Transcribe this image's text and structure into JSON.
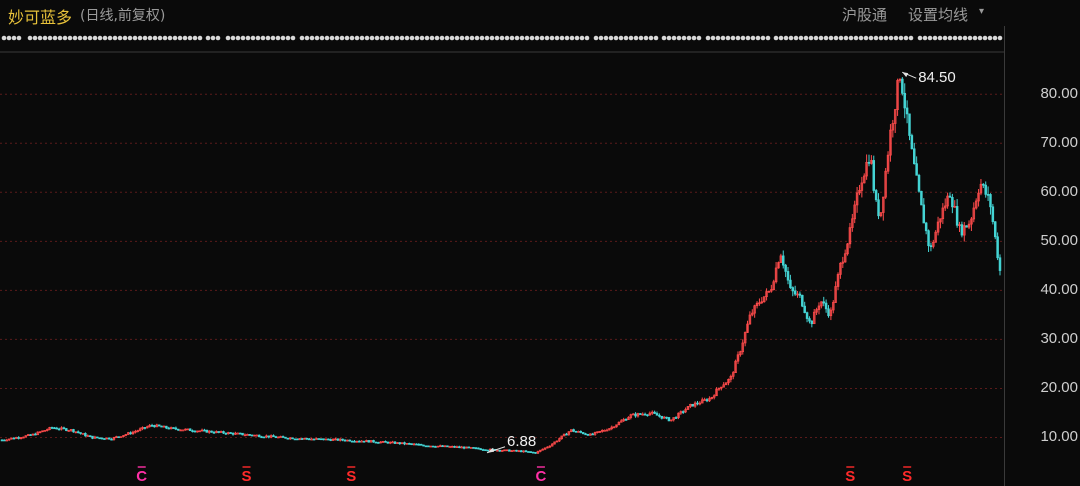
{
  "header": {
    "stock_name": "妙可蓝多",
    "period_label": "(日线,前复权)",
    "hk_connect_button": "沪股通",
    "ma_settings_button": "设置均线",
    "ma_settings_caret": "▾"
  },
  "colors": {
    "background": "#0a0a0a",
    "up": "#ff4b4b",
    "down": "#44d4d4",
    "grid": "#5a1a1a",
    "title": "#e8c23a",
    "marker_magenta": "#ff2fa6",
    "marker_red": "#ff2a2a"
  },
  "event_markers": [
    {
      "symbol": "C",
      "color": "magenta",
      "date_index": 0.14
    },
    {
      "symbol": "S",
      "color": "red",
      "date_index": 0.245
    },
    {
      "symbol": "S",
      "color": "red",
      "date_index": 0.35
    },
    {
      "symbol": "C",
      "color": "magenta",
      "date_index": 0.54
    },
    {
      "symbol": "S",
      "color": "red",
      "date_index": 0.85
    },
    {
      "symbol": "S",
      "color": "red",
      "date_index": 0.907
    }
  ],
  "chart_data": {
    "type": "candlestick",
    "title": "",
    "xlabel": "",
    "ylabel": "",
    "ylim": [
      5.0,
      88.0
    ],
    "yticks": [
      "10.00",
      "20.00",
      "30.00",
      "40.00",
      "50.00",
      "60.00",
      "70.00",
      "80.00"
    ],
    "grid": true,
    "annotations": [
      {
        "label": "84.50",
        "type": "max",
        "value": 84.5
      },
      {
        "label": "6.88",
        "type": "min",
        "value": 6.88
      }
    ],
    "series": [
      {
        "x": [
          0,
          0.03,
          0.05,
          0.07,
          0.09,
          0.11,
          0.13,
          0.15,
          0.17,
          0.19,
          0.22,
          0.25,
          0.28,
          0.31,
          0.34,
          0.37,
          0.4,
          0.43,
          0.46,
          0.49,
          0.52,
          0.535,
          0.55,
          0.57,
          0.59,
          0.61,
          0.63,
          0.65,
          0.67,
          0.69,
          0.71,
          0.72,
          0.73,
          0.74,
          0.75,
          0.76,
          0.77,
          0.78,
          0.79,
          0.8,
          0.81,
          0.82,
          0.83,
          0.84,
          0.85,
          0.86,
          0.87,
          0.875,
          0.88,
          0.89,
          0.9,
          0.91,
          0.92,
          0.93,
          0.94,
          0.95,
          0.96,
          0.97,
          0.98,
          0.99,
          1.0
        ],
        "y": [
          9.5,
          10.5,
          12.0,
          11.5,
          10.0,
          9.8,
          11.0,
          12.5,
          11.8,
          11.5,
          11.0,
          10.5,
          10.0,
          9.7,
          9.5,
          9.2,
          8.8,
          8.3,
          8.0,
          7.5,
          7.2,
          6.88,
          8.5,
          11.5,
          10.5,
          12.0,
          14.5,
          15.0,
          13.5,
          16.5,
          18.0,
          20.5,
          22.0,
          28.0,
          35.0,
          38.0,
          40.0,
          48.0,
          40.0,
          38.5,
          33.0,
          38.0,
          35.0,
          45.0,
          52.0,
          62.0,
          68.0,
          58.0,
          55.0,
          72.0,
          84.5,
          70.0,
          58.0,
          48.0,
          55.0,
          60.0,
          52.0,
          54.0,
          62.0,
          58.0,
          44.0
        ]
      }
    ]
  }
}
